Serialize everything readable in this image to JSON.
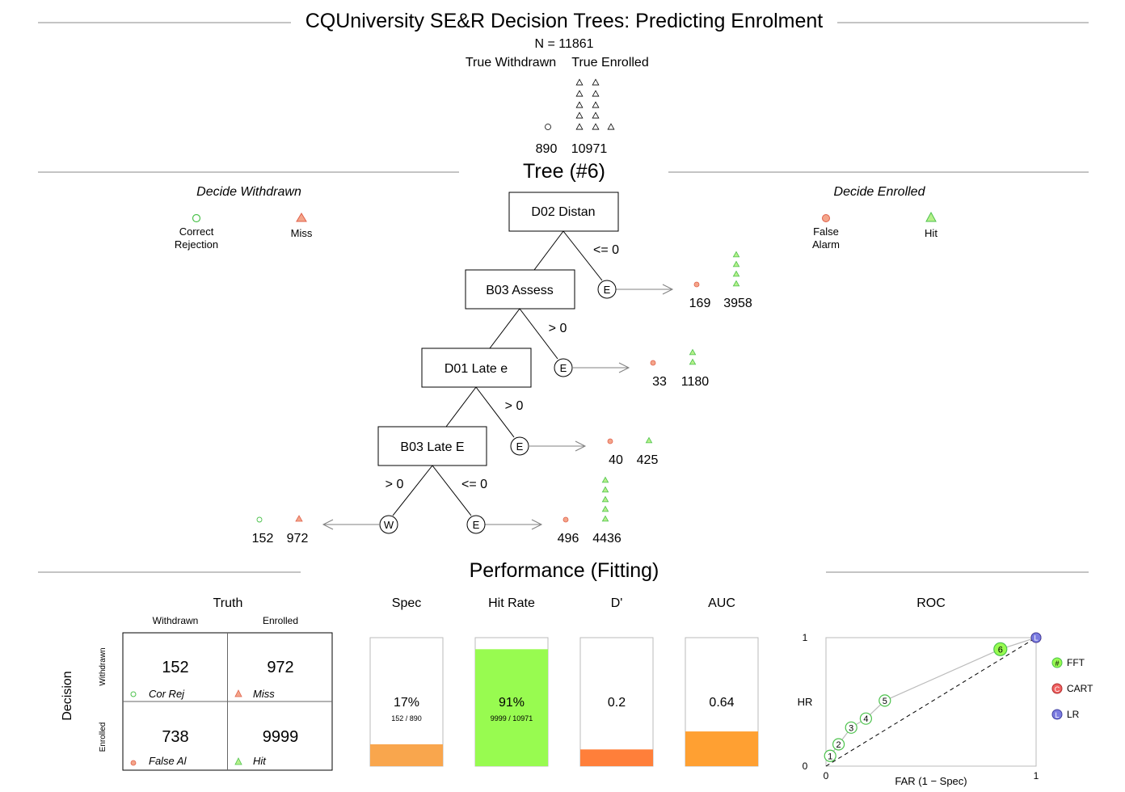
{
  "title": "CQUniversity SE&R Decision Trees: Predicting Enrolment",
  "header": {
    "n_label": "N = 11861",
    "true_withdrawn_label": "True Withdrawn",
    "true_enrolled_label": "True Enrolled",
    "withdrawn_count": "890",
    "enrolled_count": "10971"
  },
  "tree_section": {
    "title": "Tree (#6)",
    "left_heading": "Decide Withdrawn",
    "right_heading": "Decide Enrolled",
    "legend_left": [
      {
        "label_line1": "Correct",
        "label_line2": "Rejection"
      },
      {
        "label_line1": "Miss",
        "label_line2": ""
      }
    ],
    "legend_right": [
      {
        "label_line1": "False",
        "label_line2": "Alarm"
      },
      {
        "label_line1": "Hit",
        "label_line2": ""
      }
    ],
    "nodes": [
      {
        "label": "D02 Distan",
        "exit_condition": "<= 0",
        "continue_condition": "",
        "exit_letter": "E",
        "fa": "169",
        "hit": "3958"
      },
      {
        "label": "B03 Assess",
        "exit_condition": "> 0",
        "continue_condition": "",
        "exit_letter": "E",
        "fa": "33",
        "hit": "1180"
      },
      {
        "label": "D01 Late e",
        "exit_condition": "> 0",
        "continue_condition": "",
        "exit_letter": "E",
        "fa": "40",
        "hit": "425"
      },
      {
        "label": "B03 Late E",
        "exit_condition": "<= 0",
        "continue_condition": "> 0",
        "exit_letter": "E",
        "fa": "496",
        "hit": "4436"
      }
    ],
    "final_withdrawn": {
      "letter": "W",
      "cr": "152",
      "miss": "972"
    }
  },
  "performance": {
    "title": "Performance (Fitting)",
    "truth_label": "Truth",
    "decision_label": "Decision",
    "col_withdrawn": "Withdrawn",
    "col_enrolled": "Enrolled",
    "row_withdrawn": "Withdrawn",
    "row_enrolled": "Enrolled",
    "cells": {
      "cr": {
        "value": "152",
        "label": "Cor Rej"
      },
      "miss": {
        "value": "972",
        "label": "Miss"
      },
      "fa": {
        "value": "738",
        "label": "False Al"
      },
      "hit": {
        "value": "9999",
        "label": "Hit"
      }
    },
    "bars": [
      {
        "title": "Spec",
        "value": "17%",
        "sub": "152 / 890",
        "fill": 0.17,
        "color": "#F9A64D"
      },
      {
        "title": "Hit Rate",
        "value": "91%",
        "sub": "9999 / 10971",
        "fill": 0.91,
        "color": "#98FB50"
      },
      {
        "title": "D'",
        "value": "0.2",
        "sub": "",
        "fill": 0.13,
        "color": "#FF7F3A"
      },
      {
        "title": "AUC",
        "value": "0.64",
        "sub": "",
        "fill": 0.27,
        "color": "#FFA032"
      }
    ],
    "roc": {
      "title": "ROC",
      "xlabel": "FAR (1 − Spec)",
      "ylabel": "HR",
      "tick_0": "0",
      "tick_1": "1",
      "fft_points": [
        {
          "far": 0.02,
          "hr": 0.08,
          "label": "1"
        },
        {
          "far": 0.06,
          "hr": 0.17,
          "label": "2"
        },
        {
          "far": 0.12,
          "hr": 0.3,
          "label": "3"
        },
        {
          "far": 0.19,
          "hr": 0.37,
          "label": "4"
        },
        {
          "far": 0.28,
          "hr": 0.51,
          "label": "5"
        },
        {
          "far": 0.83,
          "hr": 0.91,
          "label": "6"
        }
      ],
      "selected": "6",
      "cart_point": {
        "far": 1.0,
        "hr": 1.0,
        "label": "C"
      },
      "lr_point": {
        "far": 1.0,
        "hr": 1.0,
        "label": "L"
      },
      "legend": [
        {
          "symbol": "#",
          "label": "FFT",
          "color": "#98FB50"
        },
        {
          "symbol": "C",
          "label": "CART",
          "color": "#F06060"
        },
        {
          "symbol": "L",
          "label": "LR",
          "color": "#7B7BE0"
        }
      ]
    }
  },
  "colors": {
    "correct": "#4CC24C",
    "error": "#E0604A",
    "line": "#000000",
    "arrow": "#808080"
  }
}
